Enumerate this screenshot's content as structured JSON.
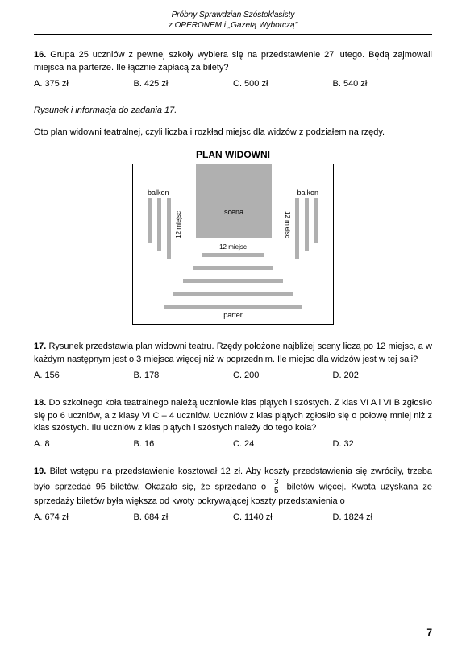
{
  "header": {
    "line1": "Próbny Sprawdzian Szóstoklasisty",
    "line2": "z OPERONEM i „Gazetą Wyborczą\""
  },
  "q16": {
    "num": "16.",
    "text": "Grupa 25 uczniów z pewnej szkoły wybiera się na przedstawienie 27 lutego. Będą zajmowali miejsca na parterze. Ile łącznie zapłacą za bilety?",
    "a": "A. 375 zł",
    "b": "B. 425 zł",
    "c": "C. 500 zł",
    "d": "B. 540 zł"
  },
  "info": "Rysunek i informacja do zadania 17.",
  "intro": "Oto plan widowni teatralnej, czyli liczba i rozkład miejsc dla widzów z podziałem na rzędy.",
  "diagram": {
    "title": "PLAN WIDOWNI",
    "balkon": "balkon",
    "scena": "scena",
    "side": "12 miejsc",
    "row": "12 miejsc",
    "parter": "parter"
  },
  "q17": {
    "num": "17.",
    "text": "Rysunek przedstawia plan widowni teatru. Rzędy położone najbliżej sceny liczą po 12 miejsc, a w każdym następnym jest o 3 miejsca więcej niż w poprzednim. Ile miejsc dla widzów jest w tej sali?",
    "a": "A. 156",
    "b": "B. 178",
    "c": "C. 200",
    "d": "D. 202"
  },
  "q18": {
    "num": "18.",
    "text": "Do szkolnego koła teatralnego należą uczniowie klas piątych i szóstych. Z klas VI A i VI B zgłosiło się po 6 uczniów, a z klasy VI C – 4 uczniów. Uczniów z klas piątych zgłosiło się o połowę mniej niż z klas szóstych. Ilu uczniów z klas piątych i szóstych należy do tego koła?",
    "a": "A. 8",
    "b": "B. 16",
    "c": "C. 24",
    "d": "D. 32"
  },
  "q19": {
    "num": "19.",
    "text1": "Bilet wstępu na przedstawienie kosztował 12 zł. Aby koszty przedstawienia się zwróciły, trzeba było sprzedać 95 biletów. Okazało się, że sprzedano o ",
    "fracNum": "3",
    "fracDen": "5",
    "text2": " biletów więcej. Kwota uzyskana ze sprzedaży biletów była większa od kwoty pokrywającej koszty przedstawienia o",
    "a": "A. 674 zł",
    "b": "B. 684 zł",
    "c": "C. 1140 zł",
    "d": "D. 1824 zł"
  },
  "pageNum": "7"
}
